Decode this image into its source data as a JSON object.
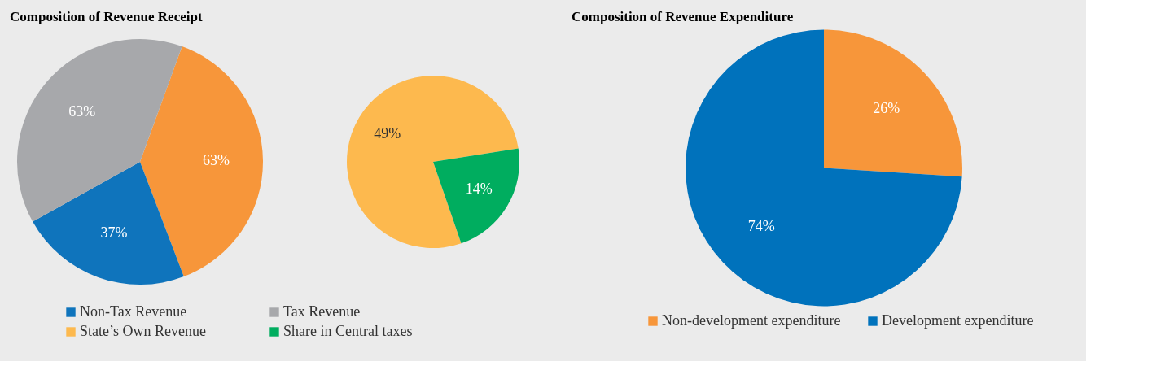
{
  "chart_data": [
    {
      "type": "pie",
      "title": "Composition of Revenue Receipt",
      "categories": [
        null,
        "Non-Tax Revenue",
        "Tax Revenue"
      ],
      "values": [
        63,
        37,
        63
      ],
      "colors": [
        "#f7963a",
        "#0f74bc",
        "#a7a8ab"
      ],
      "value_labels": [
        "63%",
        "37%",
        "63%"
      ],
      "legend": "bottom"
    },
    {
      "type": "pie",
      "categories": [
        "State’s Own Revenue",
        "Share in Central taxes"
      ],
      "values": [
        49,
        14
      ],
      "colors": [
        "#fdb94e",
        "#00ad5f"
      ],
      "value_labels": [
        "49%",
        "14%"
      ],
      "legend": "bottom"
    },
    {
      "type": "pie",
      "title": "Composition of Revenue Expenditure",
      "categories": [
        "Non-development expenditure",
        "Development expenditure"
      ],
      "values": [
        26,
        74
      ],
      "colors": [
        "#f7963a",
        "#0072bc"
      ],
      "value_labels": [
        "26%",
        "74%"
      ],
      "legend": "bottom"
    }
  ]
}
